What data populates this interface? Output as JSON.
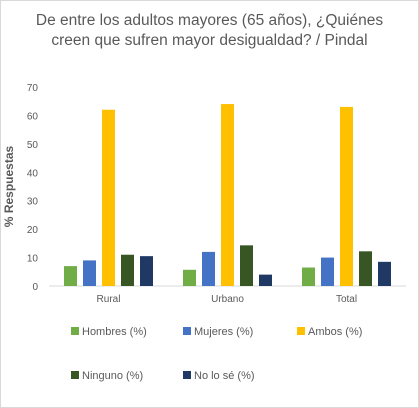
{
  "chart_data": {
    "type": "bar",
    "title_line1": "De entre los adultos mayores (65 años), ¿Quiénes",
    "title_line2": "creen que sufren mayor desigualdad? / Pindal",
    "ylabel": "% Respuestas",
    "xlabel": "",
    "ylim": [
      0,
      70
    ],
    "yticks": [
      0,
      10,
      20,
      30,
      40,
      50,
      60,
      70
    ],
    "grid": false,
    "legend_position": "bottom",
    "categories": [
      "Rural",
      "Urbano",
      "Total"
    ],
    "series": [
      {
        "name": "Hombres (%)",
        "color": "#70ad47",
        "values": [
          7,
          5.7,
          6.5
        ]
      },
      {
        "name": "Mujeres (%)",
        "color": "#4472c4",
        "values": [
          9,
          12,
          10
        ]
      },
      {
        "name": "Ambos (%)",
        "color": "#ffc000",
        "values": [
          62,
          64,
          63
        ]
      },
      {
        "name": "Ninguno (%)",
        "color": "#375623",
        "values": [
          11,
          14.3,
          12.2
        ]
      },
      {
        "name": "No lo sé (%)",
        "color": "#203864",
        "values": [
          10.5,
          4,
          8.5
        ]
      }
    ]
  }
}
